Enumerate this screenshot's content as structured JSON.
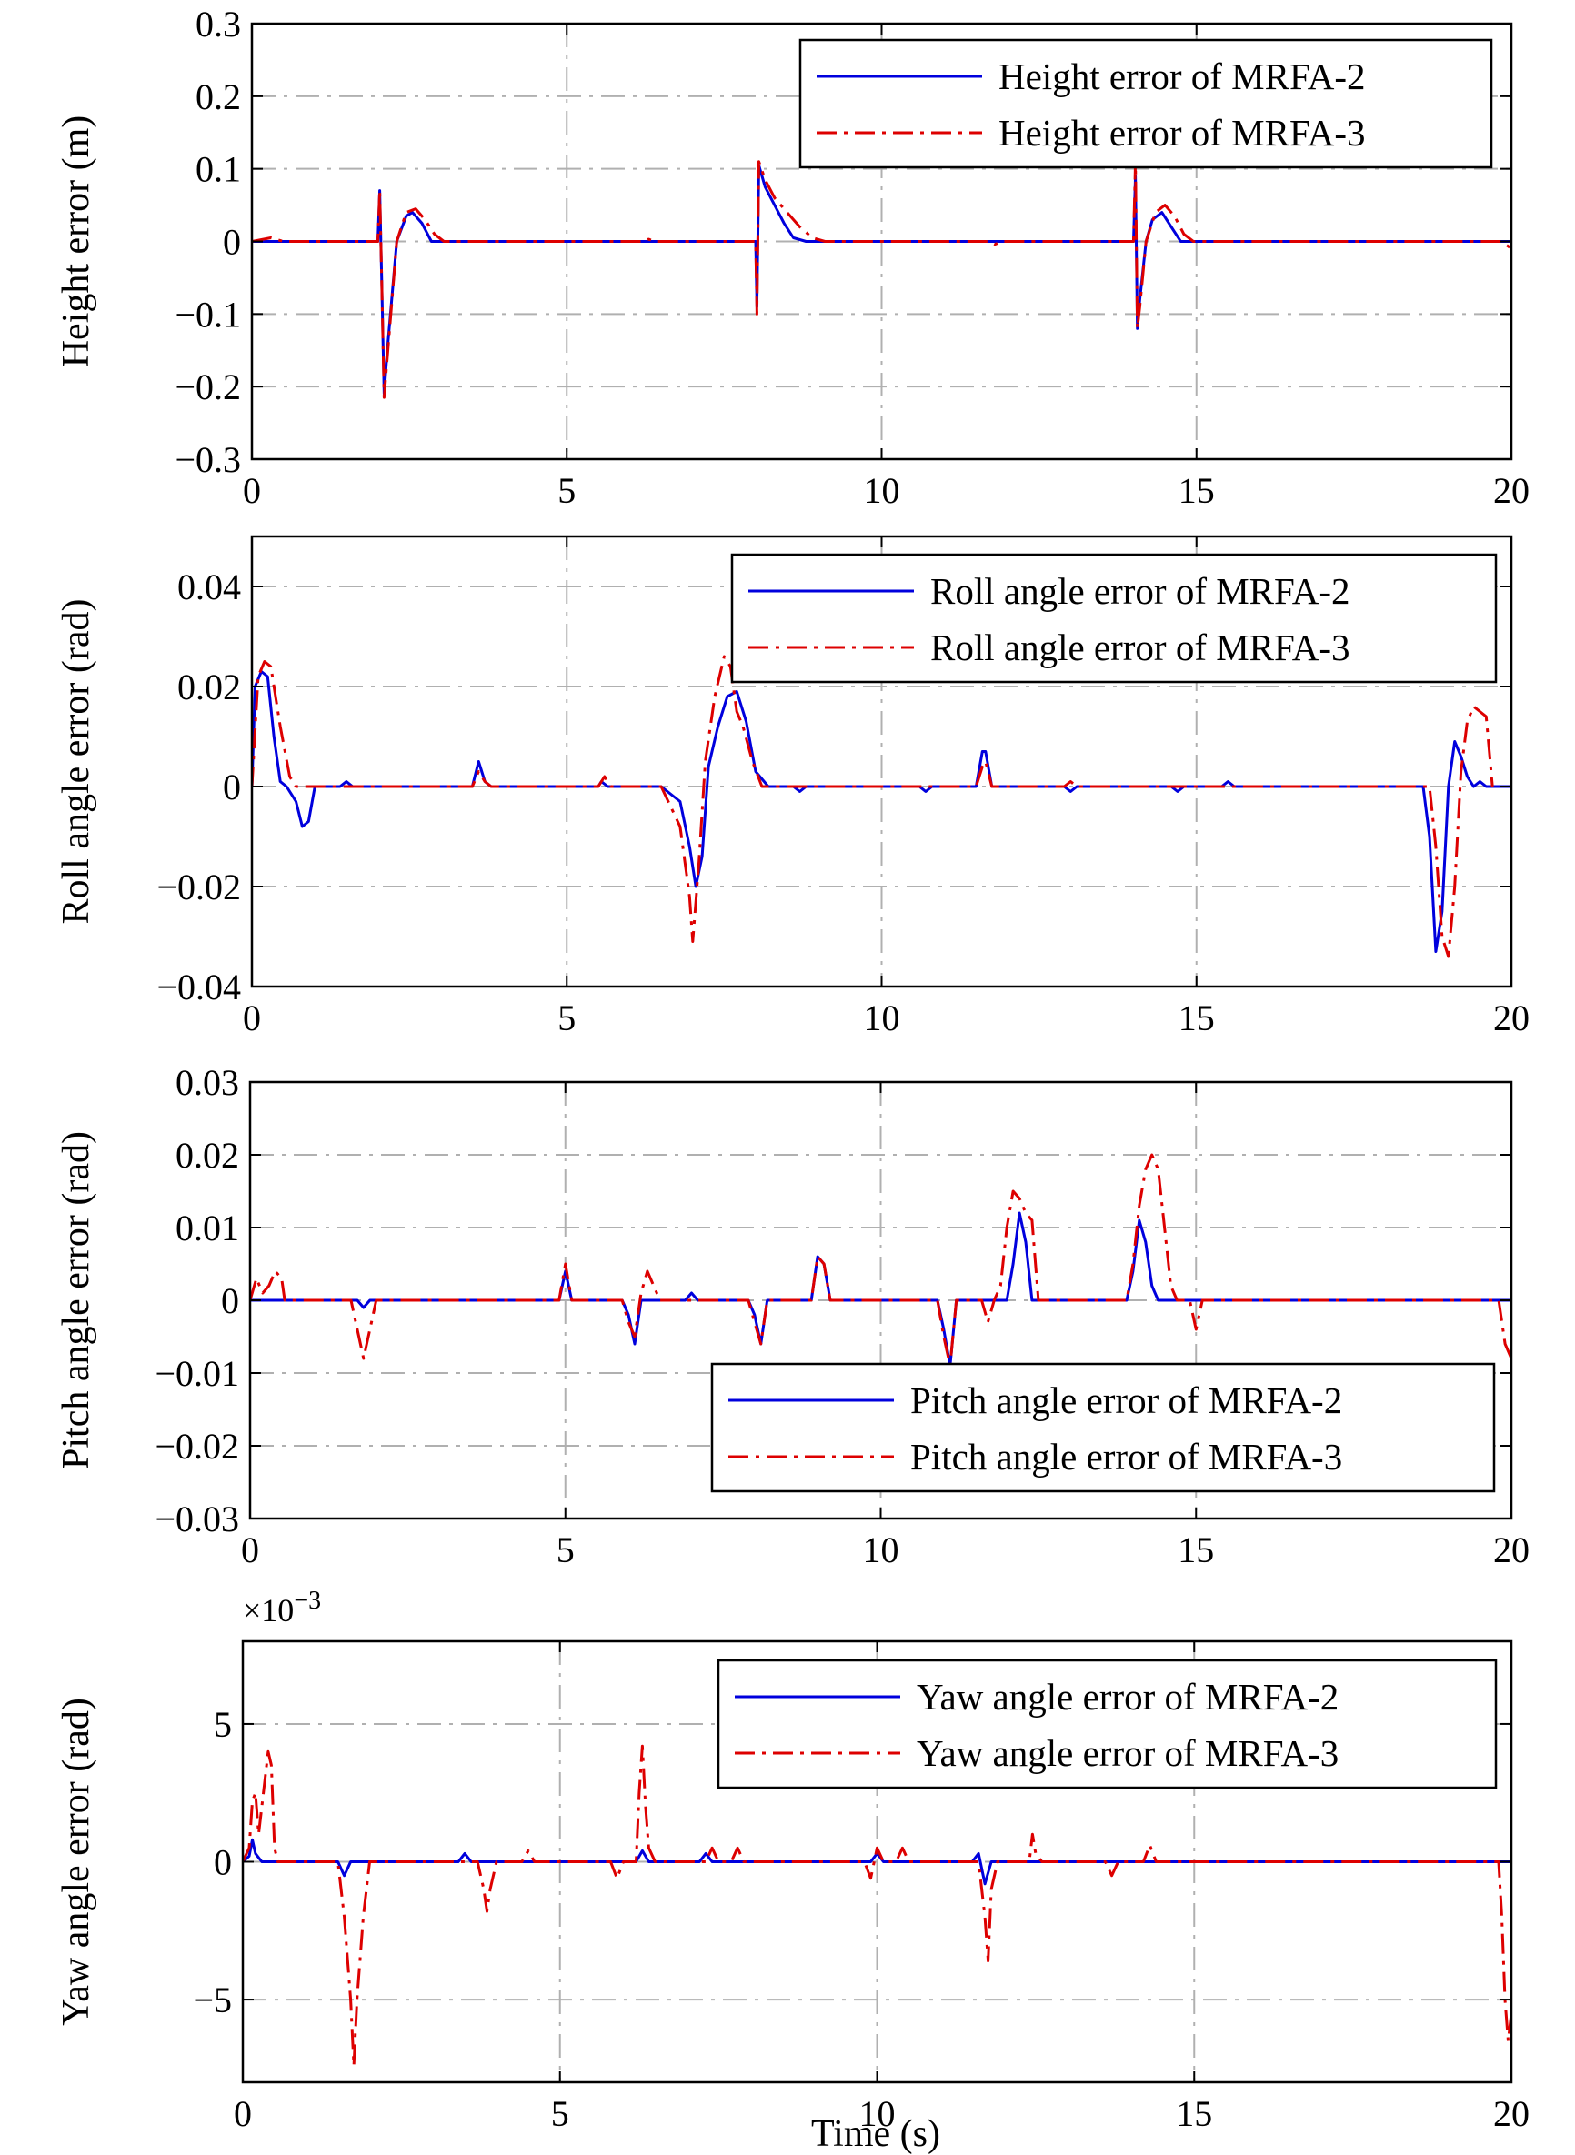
{
  "colors": {
    "series_a": "#0000dd",
    "series_b": "#dd0000",
    "grid": "#b0b0b0"
  },
  "figure": {
    "xlabel": "Time (s)"
  },
  "chart_data": [
    {
      "type": "line",
      "ylabel": "Height error (m)",
      "xlim": [
        0,
        20
      ],
      "ylim": [
        -0.3,
        0.3
      ],
      "xticks": [
        0,
        5,
        10,
        15,
        20
      ],
      "yticks": [
        -0.3,
        -0.2,
        -0.1,
        0,
        0.1,
        0.2,
        0.3
      ],
      "ytick_labels": [
        "−0.3",
        "−0.2",
        "−0.1",
        "0",
        "0.1",
        "0.2",
        "0.3"
      ],
      "xtick_labels": [
        "0",
        "5",
        "10",
        "15",
        "20"
      ],
      "exponent_label": "",
      "grid": true,
      "legend": "top-right",
      "series": [
        {
          "name": "Height error of MRFA-2",
          "style": "solid",
          "color": "#0000dd",
          "x": [
            0,
            1.9,
            2.0,
            2.03,
            2.06,
            2.1,
            2.15,
            2.3,
            2.45,
            2.55,
            2.7,
            2.85,
            3.0,
            8.0,
            8.02,
            8.05,
            8.15,
            8.3,
            8.45,
            8.6,
            8.8,
            9.5,
            14.0,
            14.03,
            14.06,
            14.1,
            14.2,
            14.3,
            14.45,
            14.6,
            14.75,
            14.9,
            20
          ],
          "y": [
            0,
            0,
            0,
            0.07,
            -0.05,
            -0.21,
            -0.15,
            0.0,
            0.035,
            0.04,
            0.025,
            0.0,
            0.0,
            0,
            -0.09,
            0.105,
            0.075,
            0.05,
            0.025,
            0.005,
            0.0,
            0.0,
            0,
            0.09,
            -0.12,
            -0.08,
            0.0,
            0.03,
            0.04,
            0.02,
            0.0,
            0.0,
            0
          ]
        },
        {
          "name": "Height error of MRFA-3",
          "style": "dashdot",
          "color": "#dd0000",
          "x": [
            0,
            0.3,
            0.5,
            0.7,
            1.9,
            2.0,
            2.03,
            2.06,
            2.1,
            2.15,
            2.3,
            2.45,
            2.6,
            2.75,
            2.9,
            3.05,
            3.2,
            6.2,
            6.3,
            6.4,
            8.0,
            8.02,
            8.05,
            8.15,
            8.3,
            8.5,
            8.7,
            8.9,
            9.1,
            11.7,
            11.8,
            11.9,
            14.0,
            14.03,
            14.06,
            14.1,
            14.2,
            14.35,
            14.5,
            14.65,
            14.8,
            14.95,
            19.7,
            19.85,
            20
          ],
          "y": [
            0,
            0.005,
            0.0,
            0.0,
            0,
            0.0,
            0.07,
            -0.05,
            -0.215,
            -0.16,
            0.0,
            0.04,
            0.045,
            0.03,
            0.01,
            0.0,
            0.0,
            0,
            0.003,
            0,
            0,
            -0.1,
            0.11,
            0.085,
            0.06,
            0.04,
            0.02,
            0.005,
            0.0,
            0,
            -0.004,
            0,
            0,
            0.11,
            -0.12,
            -0.09,
            0.0,
            0.04,
            0.05,
            0.035,
            0.01,
            0.0,
            0.0,
            0.0,
            -0.01
          ]
        }
      ]
    },
    {
      "type": "line",
      "ylabel": "Roll angle error (rad)",
      "xlim": [
        0,
        20
      ],
      "ylim": [
        -0.04,
        0.05
      ],
      "xticks": [
        0,
        5,
        10,
        15,
        20
      ],
      "yticks": [
        -0.04,
        -0.02,
        0,
        0.02,
        0.04
      ],
      "ytick_labels": [
        "−0.04",
        "−0.02",
        "0",
        "0.02",
        "0.04"
      ],
      "xtick_labels": [
        "0",
        "5",
        "10",
        "15",
        "20"
      ],
      "exponent_label": "",
      "grid": true,
      "legend": "top-right",
      "series": [
        {
          "name": "Roll angle error of MRFA-2",
          "style": "solid",
          "color": "#0000dd",
          "x": [
            0,
            0.05,
            0.15,
            0.25,
            0.35,
            0.45,
            0.55,
            0.7,
            0.8,
            0.9,
            1.0,
            1.4,
            1.5,
            1.6,
            3.5,
            3.6,
            3.7,
            3.8,
            5.5,
            5.55,
            5.65,
            6.5,
            6.8,
            6.95,
            7.05,
            7.15,
            7.25,
            7.4,
            7.55,
            7.7,
            7.85,
            8.0,
            8.2,
            8.6,
            8.7,
            8.8,
            10.6,
            10.7,
            10.8,
            11.5,
            11.6,
            11.65,
            11.75,
            12.9,
            13.0,
            13.1,
            14.6,
            14.7,
            14.8,
            15.4,
            15.5,
            15.6,
            18.6,
            18.7,
            18.8,
            18.9,
            19.0,
            19.1,
            19.2,
            19.3,
            19.4,
            19.5,
            19.6,
            20
          ],
          "y": [
            0.0,
            0.02,
            0.023,
            0.022,
            0.01,
            0.001,
            0.0,
            -0.003,
            -0.008,
            -0.007,
            0.0,
            0.0,
            0.001,
            0.0,
            0.0,
            0.005,
            0.001,
            0.0,
            0.0,
            0.001,
            0.0,
            0.0,
            -0.003,
            -0.012,
            -0.02,
            -0.014,
            0.004,
            0.012,
            0.018,
            0.019,
            0.013,
            0.003,
            0.0,
            0.0,
            -0.001,
            0.0,
            0.0,
            -0.001,
            0.0,
            0.0,
            0.007,
            0.007,
            0.0,
            0.0,
            -0.001,
            0.0,
            0.0,
            -0.001,
            0.0,
            0.0,
            0.001,
            0.0,
            0.0,
            -0.01,
            -0.033,
            -0.025,
            0.0,
            0.009,
            0.006,
            0.002,
            0.0,
            0.001,
            0.0,
            0.0
          ]
        },
        {
          "name": "Roll angle error of MRFA-3",
          "style": "dashdot",
          "color": "#dd0000",
          "x": [
            0,
            0.1,
            0.2,
            0.3,
            0.45,
            0.6,
            0.7,
            0.8,
            3.5,
            3.6,
            3.7,
            3.8,
            5.5,
            5.6,
            5.7,
            6.5,
            6.8,
            6.95,
            7.0,
            7.1,
            7.2,
            7.35,
            7.5,
            7.6,
            7.7,
            7.8,
            7.95,
            8.1,
            8.25,
            11.5,
            11.6,
            11.65,
            11.75,
            12.9,
            13.0,
            13.1,
            18.7,
            18.8,
            18.9,
            19.0,
            19.1,
            19.2,
            19.3,
            19.4,
            19.5,
            19.6,
            19.7
          ],
          "y": [
            0.0,
            0.022,
            0.025,
            0.024,
            0.012,
            0.002,
            0.0,
            0.0,
            0.0,
            0.003,
            0.001,
            0.0,
            0.0,
            0.002,
            0.0,
            0.0,
            -0.008,
            -0.022,
            -0.031,
            -0.015,
            0.005,
            0.018,
            0.026,
            0.024,
            0.015,
            0.012,
            0.005,
            0.0,
            0.0,
            0.0,
            0.004,
            0.005,
            0.0,
            0.0,
            0.001,
            0.0,
            0.0,
            -0.012,
            -0.03,
            -0.034,
            -0.02,
            0.003,
            0.013,
            0.016,
            0.015,
            0.014,
            0.0
          ]
        }
      ]
    },
    {
      "type": "line",
      "ylabel": "Pitch angle error (rad)",
      "xlim": [
        0,
        20
      ],
      "ylim": [
        -0.03,
        0.03
      ],
      "xticks": [
        0,
        5,
        10,
        15,
        20
      ],
      "yticks": [
        -0.03,
        -0.02,
        -0.01,
        0,
        0.01,
        0.02,
        0.03
      ],
      "ytick_labels": [
        "−0.03",
        "−0.02",
        "−0.01",
        "0",
        "0.01",
        "0.02",
        "0.03"
      ],
      "xtick_labels": [
        "0",
        "5",
        "10",
        "15",
        "20"
      ],
      "exponent_label": "",
      "grid": true,
      "legend": "bottom-right",
      "series": [
        {
          "name": "Pitch angle error of MRFA-2",
          "style": "solid",
          "color": "#0000dd",
          "x": [
            0,
            1.7,
            1.8,
            1.9,
            4.9,
            5.0,
            5.1,
            5.9,
            6.0,
            6.1,
            6.2,
            6.9,
            7.0,
            7.1,
            7.9,
            8.0,
            8.1,
            8.2,
            8.9,
            9.0,
            9.1,
            9.2,
            10.9,
            11.0,
            11.1,
            11.2,
            12.0,
            12.1,
            12.2,
            12.3,
            12.4,
            13.9,
            14.0,
            14.1,
            14.2,
            14.3,
            14.4,
            20
          ],
          "y": [
            0,
            0,
            -0.001,
            0,
            0,
            0.004,
            0,
            0,
            -0.002,
            -0.006,
            0,
            0,
            0.001,
            0,
            0,
            -0.002,
            -0.006,
            0,
            0,
            0.006,
            0.005,
            0,
            0,
            -0.004,
            -0.009,
            0,
            0,
            0.005,
            0.012,
            0.008,
            0,
            0,
            0.004,
            0.011,
            0.008,
            0.002,
            0,
            0
          ]
        },
        {
          "name": "Pitch angle error of MRFA-3",
          "style": "dashdot",
          "color": "#dd0000",
          "x": [
            0,
            0.1,
            0.2,
            0.3,
            0.4,
            0.5,
            0.55,
            0.6,
            1.6,
            1.7,
            1.8,
            1.9,
            2.0,
            4.9,
            5.0,
            5.1,
            5.9,
            6.0,
            6.1,
            6.2,
            6.3,
            6.4,
            6.5,
            7.9,
            8.0,
            8.1,
            8.2,
            8.9,
            9.0,
            9.1,
            9.2,
            10.9,
            11.0,
            11.1,
            11.2,
            11.6,
            11.7,
            11.8,
            11.9,
            12.0,
            12.1,
            12.2,
            12.3,
            12.4,
            12.5,
            12.6,
            13.9,
            14.0,
            14.1,
            14.2,
            14.3,
            14.4,
            14.5,
            14.6,
            14.7,
            14.8,
            14.9,
            15.0,
            15.1,
            15.2,
            19.8,
            19.9,
            20
          ],
          "y": [
            0,
            0.003,
            0.001,
            0.002,
            0.004,
            0.003,
            0.0,
            0,
            0,
            -0.004,
            -0.008,
            -0.004,
            0,
            0,
            0.005,
            0,
            0,
            -0.003,
            -0.005,
            0.001,
            0.004,
            0.002,
            0,
            0,
            -0.003,
            -0.006,
            0,
            0,
            0.006,
            0.005,
            0,
            0,
            -0.005,
            -0.009,
            0,
            0,
            -0.003,
            0,
            0.002,
            0.01,
            0.015,
            0.014,
            0.012,
            0.011,
            0.0,
            0,
            0,
            0.005,
            0.013,
            0.018,
            0.02,
            0.018,
            0.01,
            0.002,
            0,
            0,
            0,
            -0.004,
            0,
            0,
            0,
            -0.006,
            -0.008
          ]
        }
      ]
    },
    {
      "type": "line",
      "ylabel": "Yaw angle error (rad)",
      "xlim": [
        0,
        20
      ],
      "ylim": [
        -8,
        8
      ],
      "xticks": [
        0,
        5,
        10,
        15,
        20
      ],
      "yticks": [
        -5,
        0,
        5
      ],
      "ytick_labels": [
        "−5",
        "0",
        "5"
      ],
      "xtick_labels": [
        "0",
        "5",
        "10",
        "15",
        "20"
      ],
      "exponent_label": "×10",
      "exponent_sup": "−3",
      "grid": true,
      "legend": "top-right",
      "series": [
        {
          "name": "Yaw angle error of MRFA-2",
          "style": "solid",
          "color": "#0000dd",
          "x": [
            0,
            0.1,
            0.15,
            0.2,
            0.3,
            1.5,
            1.6,
            1.7,
            3.4,
            3.5,
            3.6,
            6.2,
            6.3,
            6.4,
            7.2,
            7.3,
            7.4,
            9.9,
            10.0,
            10.1,
            11.5,
            11.6,
            11.7,
            11.8,
            19.9,
            20
          ],
          "y": [
            0,
            0.2,
            0.8,
            0.3,
            0,
            0,
            -0.5,
            0,
            0,
            0.3,
            0,
            0,
            0.4,
            0,
            0,
            0.3,
            0,
            0,
            0.3,
            0,
            0,
            0.3,
            -0.8,
            0,
            0,
            0
          ]
        },
        {
          "name": "Yaw angle error of MRFA-3",
          "style": "dashdot",
          "color": "#dd0000",
          "x": [
            0,
            0.1,
            0.15,
            0.2,
            0.25,
            0.3,
            0.35,
            0.4,
            0.45,
            0.5,
            0.55,
            1.5,
            1.6,
            1.7,
            1.75,
            1.8,
            1.9,
            2.0,
            3.7,
            3.8,
            3.85,
            3.9,
            4.0,
            4.4,
            4.5,
            4.6,
            5.8,
            5.9,
            6.0,
            6.2,
            6.25,
            6.3,
            6.35,
            6.4,
            6.5,
            7.3,
            7.4,
            7.5,
            7.7,
            7.8,
            7.9,
            9.8,
            9.9,
            10.0,
            10.1,
            10.3,
            10.4,
            10.5,
            11.6,
            11.7,
            11.75,
            11.8,
            11.9,
            12.4,
            12.45,
            12.5,
            12.6,
            13.6,
            13.7,
            13.8,
            14.2,
            14.3,
            14.4,
            19.8,
            19.85,
            19.9,
            19.95,
            20
          ],
          "y": [
            0,
            0.5,
            2.2,
            2.5,
            1.0,
            2.0,
            3.0,
            4.0,
            3.5,
            0.5,
            0,
            0,
            -2.0,
            -5.0,
            -7.4,
            -5.0,
            -2.0,
            0,
            0,
            -1.0,
            -1.8,
            -1.0,
            0,
            0,
            0.4,
            0,
            0,
            -0.6,
            0,
            0,
            2.5,
            4.2,
            2.0,
            0.5,
            0,
            0,
            0.5,
            0,
            0,
            0.5,
            0,
            0,
            -0.6,
            0.5,
            0,
            0,
            0.5,
            0,
            0,
            -2.0,
            -3.6,
            -1.0,
            0,
            0,
            1.0,
            0.3,
            0,
            0,
            -0.5,
            0,
            0,
            0.6,
            0,
            0,
            -2.0,
            -5.0,
            -6.5,
            -5.5
          ]
        }
      ]
    }
  ]
}
